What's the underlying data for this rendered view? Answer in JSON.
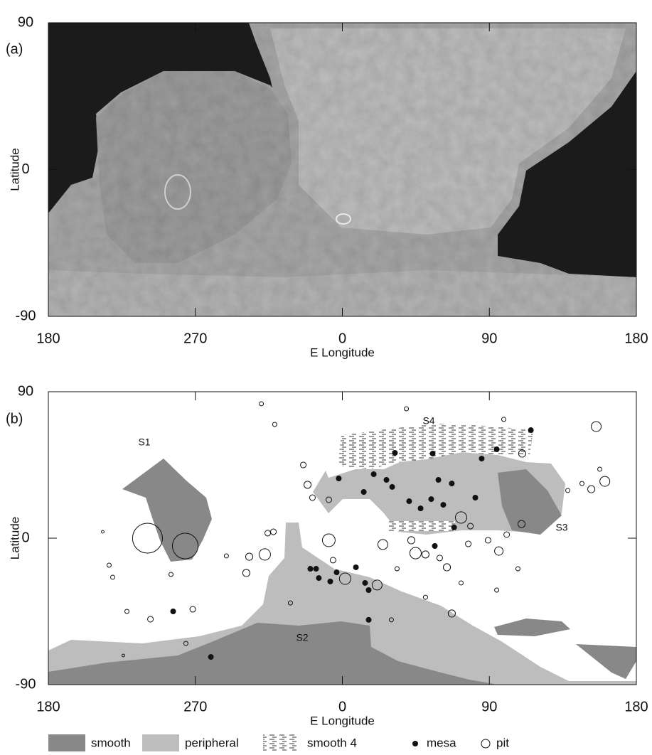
{
  "axes": {
    "xlabel": "E Longitude",
    "ylabel": "Latitude",
    "xlim": [
      -180,
      180
    ],
    "ylim": [
      -90,
      90
    ],
    "xticks": [
      {
        "value": -180,
        "label": "180"
      },
      {
        "value": -90,
        "label": "270"
      },
      0,
      90,
      {
        "value": 180,
        "label": "180"
      }
    ],
    "yticks": [
      90,
      0,
      -90
    ]
  },
  "panel_a": {
    "label": "(a)"
  },
  "panel_b": {
    "label": "(b)",
    "regions": [
      "S1",
      "S2",
      "S3",
      "S4"
    ],
    "mesas": [
      [
        -2.2,
        36.7
      ],
      [
        13.1,
        28.4
      ],
      [
        19.2,
        39.3
      ],
      [
        27.0,
        35.8
      ],
      [
        30.5,
        31.5
      ],
      [
        32.2,
        52.4
      ],
      [
        40.9,
        22.7
      ],
      [
        47.9,
        18.3
      ],
      [
        55.3,
        52.0
      ],
      [
        58.8,
        35.8
      ],
      [
        54.4,
        24.0
      ],
      [
        61.8,
        20.5
      ],
      [
        67.0,
        33.6
      ],
      [
        68.4,
        6.6
      ],
      [
        81.4,
        24.9
      ],
      [
        85.3,
        48.9
      ],
      [
        94.5,
        54.6
      ],
      [
        115.4,
        66.4
      ],
      [
        -19.6,
        -18.8
      ],
      [
        -16.1,
        -18.8
      ],
      [
        -14.4,
        -24.5
      ],
      [
        -7.4,
        -26.6
      ],
      [
        -3.5,
        -21.0
      ],
      [
        13.9,
        -27.5
      ],
      [
        16.1,
        -31.9
      ],
      [
        16.1,
        -50.2
      ],
      [
        8.3,
        -17.9
      ],
      [
        -103.6,
        -45.0
      ],
      [
        -80.5,
        -73.0
      ],
      [
        56.6,
        -4.8
      ]
    ],
    "pits": [
      [
        -119.3,
        0,
        18.3
      ],
      [
        -96.2,
        -4.8,
        15.7
      ],
      [
        -47.5,
        -10.0,
        7
      ],
      [
        -57.0,
        -11.4,
        4.4
      ],
      [
        -58.8,
        -21.4,
        4.4
      ],
      [
        -42.2,
        3.9,
        3.5
      ],
      [
        -45.7,
        3.1,
        3.5
      ],
      [
        -21.3,
        32.8,
        4.4
      ],
      [
        -18.3,
        24.9,
        3.5
      ],
      [
        -8.3,
        23.6,
        3.5
      ],
      [
        -8.3,
        -1.3,
        7.8
      ],
      [
        1.7,
        -24.9,
        7
      ],
      [
        21.3,
        -28.8,
        6.1
      ],
      [
        24.8,
        -3.9,
        6.1
      ],
      [
        44.8,
        -9.2,
        7
      ],
      [
        72.7,
        12.7,
        7
      ],
      [
        95.8,
        -7.9,
        5.2
      ],
      [
        64.0,
        -17.9,
        4.4
      ],
      [
        67.0,
        -46.3,
        4.4
      ],
      [
        110.1,
        52.0,
        4.4
      ],
      [
        155.4,
        68.6,
        6.1
      ],
      [
        160.7,
        34.9,
        6.1
      ],
      [
        152.4,
        30.1,
        4.4
      ],
      [
        109.7,
        8.7,
        4.4
      ],
      [
        -91.6,
        -43.7,
        3.5
      ],
      [
        -117.5,
        -49.8,
        3.5
      ],
      [
        -49.6,
        82.6,
        2.6
      ],
      [
        -41.4,
        69.9,
        2.6
      ],
      [
        -23.9,
        45.0,
        3.5
      ],
      [
        -5.7,
        -13.5,
        3.5
      ],
      [
        -31.8,
        -39.8,
        2.6
      ],
      [
        30.0,
        -50.2,
        2.6
      ],
      [
        50.9,
        -10.0,
        4.4
      ],
      [
        42.2,
        -1.3,
        4.4
      ],
      [
        77.1,
        -3.5,
        3.5
      ],
      [
        89.2,
        -1.3,
        3.5
      ],
      [
        100.6,
        2.2,
        3.5
      ],
      [
        78.4,
        7.4,
        3.5
      ],
      [
        59.6,
        -12.2,
        3.5
      ],
      [
        72.7,
        -27.5,
        2.6
      ],
      [
        50.9,
        -36.3,
        2.6
      ],
      [
        33.5,
        -18.8,
        2.6
      ],
      [
        94.5,
        -31.9,
        2.6
      ],
      [
        107.5,
        -18.8,
        2.6
      ],
      [
        138.0,
        29.3,
        2.6
      ],
      [
        146.7,
        33.6,
        2.6
      ],
      [
        157.6,
        42.4,
        2.6
      ],
      [
        98.8,
        73.0,
        2.6
      ],
      [
        39.2,
        79.5,
        2.6
      ],
      [
        -140.6,
        -24.0,
        2.6
      ],
      [
        -142.8,
        -16.6,
        2.6
      ],
      [
        -146.7,
        3.9,
        1.7
      ],
      [
        -71.0,
        -10.9,
        2.6
      ],
      [
        -104.9,
        -22.3,
        2.6
      ],
      [
        -131.9,
        -45.0,
        2.6
      ],
      [
        -134.1,
        -72.1,
        1.7
      ],
      [
        -95.8,
        -64.7,
        2.6
      ]
    ]
  },
  "legend": [
    "smooth",
    "peripheral",
    "smooth 4",
    "mesa",
    "pit"
  ]
}
